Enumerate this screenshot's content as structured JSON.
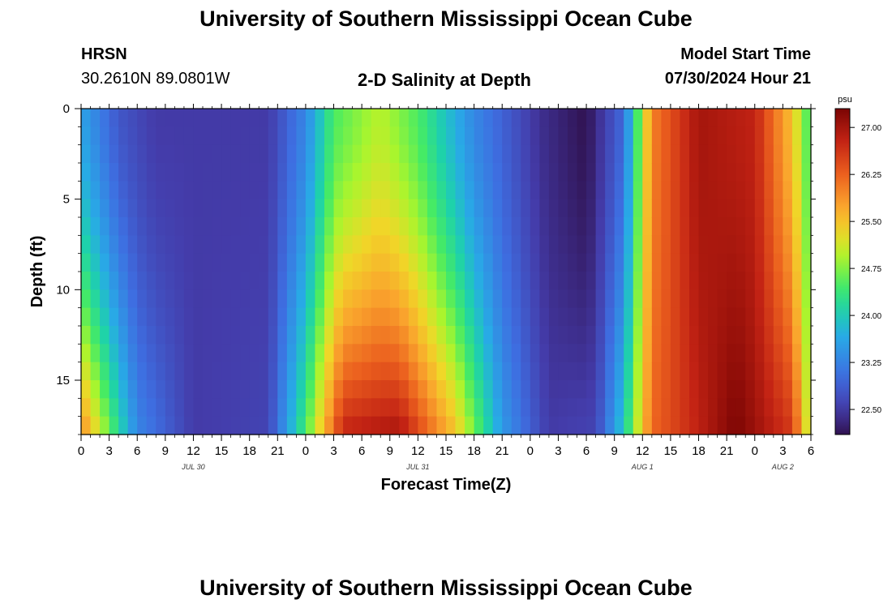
{
  "header": {
    "title": "University of Southern Mississippi Ocean Cube",
    "station": "HRSN",
    "coords": "30.2610N  89.0801W",
    "plot_title": "2-D Salinity at Depth",
    "model_label": "Model Start Time",
    "model_time": "07/30/2024 Hour 21"
  },
  "footer": {
    "title": "University of Southern Mississippi Ocean Cube"
  },
  "chart_data": {
    "type": "heatmap",
    "title": "2-D Salinity at Depth",
    "xlabel": "Forecast Time(Z)",
    "ylabel": "Depth (ft)",
    "x_range_hours": [
      0,
      78
    ],
    "y_range_ft": [
      0,
      18
    ],
    "x_ticks": [
      "0",
      "3",
      "6",
      "9",
      "12",
      "15",
      "18",
      "21",
      "0",
      "3",
      "6",
      "9",
      "12",
      "15",
      "18",
      "21",
      "0",
      "3",
      "6",
      "9",
      "12",
      "15",
      "18",
      "21",
      "0",
      "3",
      "6"
    ],
    "x_tick_hours": [
      0,
      3,
      6,
      9,
      12,
      15,
      18,
      21,
      24,
      27,
      30,
      33,
      36,
      39,
      42,
      45,
      48,
      51,
      54,
      57,
      60,
      63,
      66,
      69,
      72,
      75,
      78
    ],
    "date_labels": [
      {
        "label": "JUL 30",
        "hour": 12
      },
      {
        "label": "JUL 31",
        "hour": 36
      },
      {
        "label": "AUG 1",
        "hour": 60
      },
      {
        "label": "AUG 2",
        "hour": 75
      }
    ],
    "y_ticks": [
      0,
      5,
      10,
      15
    ],
    "colorbar": {
      "unit": "psu",
      "range": [
        22.1,
        27.3
      ],
      "ticks": [
        22.5,
        23.25,
        24.0,
        24.75,
        25.5,
        26.25,
        27.0
      ],
      "tick_labels": [
        "22.50",
        "23.25",
        "24.00",
        "24.75",
        "25.50",
        "26.25",
        "27.00"
      ]
    },
    "salinity_profile_surface": [
      {
        "hour": 0,
        "psu": 23.6
      },
      {
        "hour": 4,
        "psu": 22.8
      },
      {
        "hour": 8,
        "psu": 22.5
      },
      {
        "hour": 20,
        "psu": 22.5
      },
      {
        "hour": 24,
        "psu": 23.3
      },
      {
        "hour": 27,
        "psu": 24.5
      },
      {
        "hour": 32,
        "psu": 25.0
      },
      {
        "hour": 36,
        "psu": 24.5
      },
      {
        "hour": 42,
        "psu": 23.3
      },
      {
        "hour": 49,
        "psu": 22.4
      },
      {
        "hour": 54,
        "psu": 22.1
      },
      {
        "hour": 58,
        "psu": 23.0
      },
      {
        "hour": 61,
        "psu": 26.0
      },
      {
        "hour": 66,
        "psu": 27.0
      },
      {
        "hour": 72,
        "psu": 26.8
      },
      {
        "hour": 76,
        "psu": 25.5
      },
      {
        "hour": 78,
        "psu": 24.3
      }
    ],
    "salinity_profile_bottom": [
      {
        "hour": 0,
        "psu": 26.0
      },
      {
        "hour": 6,
        "psu": 23.3
      },
      {
        "hour": 12,
        "psu": 22.5
      },
      {
        "hour": 20,
        "psu": 22.6
      },
      {
        "hour": 24,
        "psu": 24.5
      },
      {
        "hour": 28,
        "psu": 26.8
      },
      {
        "hour": 34,
        "psu": 27.0
      },
      {
        "hour": 40,
        "psu": 25.5
      },
      {
        "hour": 45,
        "psu": 23.5
      },
      {
        "hour": 50,
        "psu": 22.5
      },
      {
        "hour": 55,
        "psu": 22.6
      },
      {
        "hour": 58,
        "psu": 24.0
      },
      {
        "hour": 61,
        "psu": 26.2
      },
      {
        "hour": 70,
        "psu": 27.3
      },
      {
        "hour": 76,
        "psu": 26.6
      },
      {
        "hour": 78,
        "psu": 24.8
      }
    ]
  }
}
